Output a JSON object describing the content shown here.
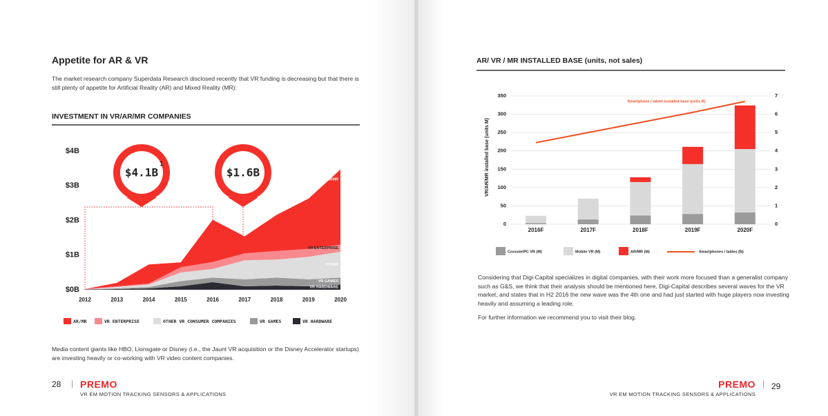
{
  "left_page": {
    "title": "Appetite for AR & VR",
    "intro": "The market research company Superdata Research disclosed recently that VR funding is decreasing but that there is still plenty of appetite for Artificial Reality (AR) and Mixed Reality (MR):",
    "chart_heading": "INVESTMENT IN VR/AR/MR COMPANIES",
    "chart": {
      "type": "stacked_area",
      "categories": [
        "2012",
        "2013",
        "2014",
        "2015",
        "2016",
        "2017",
        "2018",
        "2019",
        "2020"
      ],
      "ylim": [
        0,
        4
      ],
      "yticks": [
        {
          "value": 0,
          "label": "$0B"
        },
        {
          "value": 1,
          "label": "$1B"
        },
        {
          "value": 2,
          "label": "$2B"
        },
        {
          "value": 3,
          "label": "$3B"
        },
        {
          "value": 4,
          "label": "$4B"
        }
      ],
      "series": [
        {
          "name": "AR/MR",
          "color": "#f5302a",
          "values": [
            0,
            0.1,
            0.55,
            0.14,
            1.22,
            0.49,
            1.04,
            1.45,
            2.17
          ]
        },
        {
          "name": "VR ENTERPRISE",
          "color": "#f88a8f",
          "values": [
            0.01,
            0.02,
            0.03,
            0.15,
            0.2,
            0.2,
            0.25,
            0.23,
            0.2
          ]
        },
        {
          "name": "OTHER VR CONSUMER COMPANIES",
          "color": "#dedede",
          "values": [
            0,
            0.04,
            0.07,
            0.25,
            0.25,
            0.55,
            0.52,
            0.65,
            0.75
          ]
        },
        {
          "name": "VR GAMES",
          "color": "#9a9a9a",
          "values": [
            0,
            0.02,
            0.04,
            0.15,
            0.13,
            0.2,
            0.23,
            0.2,
            0.2
          ]
        },
        {
          "name": "VR HARDWARE",
          "color": "#2b2b33",
          "values": [
            0.01,
            0.02,
            0.04,
            0.1,
            0.22,
            0.1,
            0.12,
            0.1,
            0.15
          ]
        }
      ],
      "area_labels": [
        "AR/MR",
        "VR ENTERPRISE",
        "OTHER",
        "VR GAMES",
        "VR HARDWARE"
      ],
      "callouts": [
        {
          "label": "$4.1B",
          "note": "1"
        },
        {
          "label": "$1.6B"
        }
      ]
    },
    "outro": "Media content giants like HBO, Lionsgate or Disney (i.e., the Jaunt VR acquisition or the Disney Accelerator startups) are investing heavily or co-working with VR video content companies.",
    "page_number": 28,
    "brand": "PREMO",
    "footer": "VR EM MOTION TRACKING SENSORS & APPLICATIONS"
  },
  "right_page": {
    "chart_heading": "AR/ VR / MR INSTALLED BASE (units, not sales)",
    "chart": {
      "type": "stacked_bar",
      "categories": [
        "2016F",
        "2017F",
        "2018F",
        "2019F",
        "2020F"
      ],
      "y_label": "VR/AR/MR installed base (units M)",
      "ylim": [
        0,
        350
      ],
      "yticks": [
        0,
        50,
        100,
        150,
        200,
        250,
        300,
        350
      ],
      "y2lim": [
        0,
        7
      ],
      "y2ticks": [
        0,
        1,
        2,
        3,
        4,
        5,
        6,
        7
      ],
      "grid": true,
      "series": [
        {
          "name": "Console/PC VR (M)",
          "color": "#9b9b9b",
          "values": [
            3,
            13,
            24,
            28,
            32
          ]
        },
        {
          "name": "Mobile VR (M)",
          "color": "#d9d9d9",
          "values": [
            20,
            57,
            91,
            136,
            173
          ]
        },
        {
          "name": "AR/MR (M)",
          "color": "#f5302a",
          "values": [
            0,
            0,
            13,
            47,
            119
          ]
        },
        {
          "name": "Smartphones / tables (B)",
          "type": "line",
          "axis": "y2",
          "color": "#f04e23",
          "values": [
            4.45,
            5.0,
            5.55,
            6.1,
            6.7
          ]
        }
      ],
      "line_annotation": "Smartphone / tablet installed base (units B)"
    },
    "paragraphs": [
      "Considering that Digi-Capital specializes in digital companies, with their work more focused than a generalist company such as G&S, we think that their analysis should be mentioned here. Digi-Capital describes several waves for the VR market, and states that in H2 2016 the new wave was the 4th one and had just started with huge players now investing heavily and assuming a leading role.",
      "For further information we recommend you to visit their blog."
    ],
    "page_number": 29,
    "brand": "PREMO",
    "footer": "VR EM MOTION TRACKING SENSORS & APPLICATIONS"
  }
}
